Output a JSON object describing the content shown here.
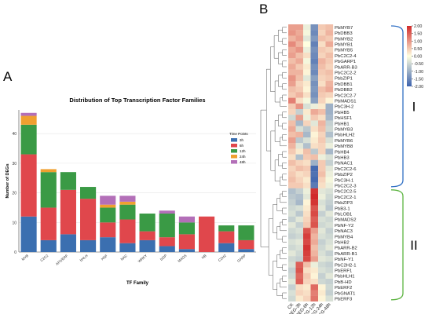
{
  "panels": {
    "a": "A",
    "b": "B"
  },
  "chart_data": [
    {
      "type": "bar",
      "stacked": true,
      "title": "Distribution of Top Transcription Factor Families",
      "xlabel": "TF Family",
      "ylabel": "Number of DEGs",
      "ylim": [
        0,
        48
      ],
      "yticks": [
        0,
        10,
        20,
        30,
        40
      ],
      "grid": true,
      "legend": {
        "title": "Time Points",
        "position": "top-right"
      },
      "categories": [
        "MYB",
        "C2C2",
        "AP2/ERF",
        "bHLH",
        "HSF",
        "NAC",
        "WRKY",
        "bZIP",
        "MADS",
        "HB",
        "C2H2",
        "GARP"
      ],
      "series": [
        {
          "name": "3h",
          "color": "#3b6fb0",
          "values": [
            12,
            4,
            6,
            4,
            5,
            3,
            4,
            2,
            1,
            0,
            3,
            1
          ]
        },
        {
          "name": "6h",
          "color": "#e0474c",
          "values": [
            21,
            11,
            15,
            14,
            5,
            8,
            3,
            3,
            5,
            12,
            4,
            3
          ]
        },
        {
          "name": "12h",
          "color": "#3a9a45",
          "values": [
            10,
            12,
            6,
            4,
            5,
            5,
            6,
            8,
            4,
            0,
            2,
            5
          ]
        },
        {
          "name": "24h",
          "color": "#f0a030",
          "values": [
            3,
            1,
            0,
            0,
            1,
            1,
            0,
            0,
            0,
            0,
            0,
            0
          ]
        },
        {
          "name": "48h",
          "color": "#b36fb8",
          "values": [
            1,
            0,
            0,
            0,
            3,
            2,
            0,
            1,
            2,
            0,
            0,
            0
          ]
        }
      ]
    },
    {
      "type": "heatmap",
      "columns": [
        "CK",
        "PEG-3h",
        "PEG-6h",
        "PEG-12h",
        "PEG-24h",
        "PEG-48h"
      ],
      "rows": [
        "PbMYB7",
        "PbDBB3",
        "PbMYB2",
        "PbMYB1",
        "PbMYB5",
        "PbC2C2-4",
        "PbGARP1",
        "PbARR-B3",
        "PbC2C2-2",
        "PbbZIP1",
        "PbDBB1",
        "PbDBB2",
        "PbC2C2-7",
        "PbMADS1",
        "PbC3H-2",
        "PbHB5",
        "PbHSF1",
        "PbHB1",
        "PbMYB3",
        "PbbHLH2",
        "PbMYB6",
        "PbMYB8",
        "PbHB4",
        "PbHB3",
        "PbNAC1",
        "PbC2C2-6",
        "PbbZIP2",
        "PbC3H-1",
        "PbC2C2-3",
        "PbC2C2-5",
        "PbC2C2-1",
        "PbbZIP3",
        "PbB3-1",
        "PbLOB1",
        "PbMADS2",
        "PbNF-Y2",
        "PbNAC3",
        "PbMYB4",
        "PbHB2",
        "PbARR-B2",
        "PbARR-B1",
        "PbNF-Y1",
        "PbC2H2-1",
        "PbERF1",
        "PbbHLH1",
        "PbB-HD",
        "PbERF2",
        "PbGNAT1",
        "PbERF3"
      ],
      "colorbar": {
        "min": -2,
        "max": 2,
        "ticks": [
          "2.00",
          "1.50",
          "1.00",
          "0.50",
          "0.00",
          "-0.50",
          "-1.00",
          "-1.50",
          "-2.00"
        ],
        "colors": [
          "#3c62ad",
          "#ffffe0",
          "#d12a2a"
        ]
      },
      "groups": [
        {
          "label": "I",
          "from": "PbMYB7",
          "to": "PbC2C2-3",
          "color": "#2f6fc4"
        },
        {
          "label": "II",
          "from": "PbC2C2-5",
          "to": "PbERF3",
          "color": "#5bb33f"
        }
      ],
      "values": [
        [
          0.9,
          0.9,
          -0.2,
          -1.4,
          0.5,
          0.6
        ],
        [
          1.0,
          0.8,
          -0.1,
          -1.5,
          0.4,
          0.7
        ],
        [
          0.7,
          0.9,
          -0.3,
          -1.3,
          0.6,
          0.5
        ],
        [
          1.1,
          0.7,
          0.0,
          -1.6,
          0.3,
          0.8
        ],
        [
          0.8,
          1.0,
          -0.2,
          -1.4,
          0.5,
          0.4
        ],
        [
          0.9,
          0.6,
          0.3,
          -1.5,
          0.4,
          0.6
        ],
        [
          0.6,
          0.8,
          -0.1,
          -1.6,
          0.7,
          0.5
        ],
        [
          0.8,
          0.5,
          0.2,
          -1.4,
          0.6,
          0.4
        ],
        [
          0.7,
          0.7,
          0.1,
          -1.5,
          0.5,
          0.6
        ],
        [
          1.0,
          0.6,
          -0.3,
          -1.2,
          0.4,
          0.5
        ],
        [
          0.9,
          0.4,
          0.2,
          -1.4,
          0.3,
          0.7
        ],
        [
          0.6,
          0.5,
          0.1,
          -1.3,
          0.6,
          0.8
        ],
        [
          0.5,
          0.7,
          0.3,
          -1.4,
          0.5,
          0.4
        ],
        [
          1.2,
          0.3,
          -0.1,
          -1.2,
          0.4,
          0.1
        ],
        [
          0.5,
          1.0,
          -0.4,
          -0.2,
          0.2,
          -1.0
        ],
        [
          0.4,
          -0.6,
          0.2,
          0.8,
          0.6,
          -1.0
        ],
        [
          -0.5,
          0.9,
          -0.2,
          0.5,
          0.3,
          -0.9
        ],
        [
          0.6,
          -0.9,
          0.4,
          -0.3,
          0.7,
          -0.6
        ],
        [
          0.8,
          -0.4,
          -0.7,
          0.3,
          0.6,
          -0.5
        ],
        [
          0.6,
          0.7,
          -0.9,
          0.1,
          0.4,
          -0.8
        ],
        [
          0.9,
          -0.7,
          -0.4,
          0.2,
          0.5,
          -0.4
        ],
        [
          0.7,
          -0.3,
          -0.8,
          0.3,
          0.4,
          -0.2
        ],
        [
          0.5,
          0.2,
          0.6,
          -0.7,
          0.4,
          -0.9
        ],
        [
          0.3,
          -0.8,
          0.5,
          0.6,
          -0.2,
          -0.4
        ],
        [
          0.6,
          0.4,
          0.3,
          -1.0,
          0.5,
          -0.6
        ],
        [
          0.4,
          0.6,
          0.5,
          -1.9,
          0.5,
          -0.3
        ],
        [
          0.5,
          0.3,
          0.4,
          -1.8,
          0.6,
          -0.2
        ],
        [
          0.6,
          0.4,
          0.2,
          -1.9,
          0.4,
          -0.1
        ],
        [
          0.5,
          0.5,
          0.3,
          -1.7,
          0.3,
          -0.2
        ],
        [
          -0.8,
          -0.6,
          -0.2,
          1.9,
          -0.3,
          -0.4
        ],
        [
          -0.7,
          -0.8,
          -0.3,
          2.0,
          -0.2,
          -0.5
        ],
        [
          -0.6,
          -0.9,
          0.1,
          1.9,
          -0.4,
          -0.6
        ],
        [
          -0.5,
          -0.4,
          0.2,
          1.6,
          -0.3,
          -0.7
        ],
        [
          -0.4,
          -0.7,
          0.3,
          1.7,
          -0.6,
          -0.3
        ],
        [
          -0.6,
          -0.3,
          0.4,
          1.5,
          -0.4,
          -0.5
        ],
        [
          -0.3,
          -0.6,
          0.5,
          1.6,
          -0.5,
          -0.4
        ],
        [
          -0.5,
          -0.4,
          1.6,
          0.9,
          -0.3,
          -0.6
        ],
        [
          -0.6,
          -0.5,
          1.8,
          0.7,
          -0.4,
          -0.5
        ],
        [
          -0.4,
          -0.3,
          1.7,
          0.8,
          -0.6,
          -0.4
        ],
        [
          -0.5,
          -0.4,
          1.9,
          0.6,
          -0.5,
          -0.3
        ],
        [
          -0.3,
          -0.5,
          1.8,
          0.7,
          -0.4,
          -0.6
        ],
        [
          -0.5,
          -0.6,
          1.7,
          0.9,
          -0.3,
          -0.4
        ],
        [
          -0.4,
          1.5,
          0.6,
          -0.2,
          -0.5,
          -0.6
        ],
        [
          -0.6,
          1.6,
          0.3,
          0.2,
          -0.4,
          -0.5
        ],
        [
          -0.5,
          1.4,
          0.5,
          0.1,
          -0.6,
          -0.3
        ],
        [
          -0.3,
          1.5,
          0.4,
          0.3,
          -0.5,
          -0.6
        ],
        [
          -0.6,
          0.3,
          0.2,
          1.4,
          0.1,
          -0.5
        ],
        [
          -0.4,
          0.4,
          0.3,
          1.2,
          0.2,
          -0.6
        ],
        [
          -0.5,
          0.2,
          0.4,
          1.3,
          0.1,
          -0.4
        ]
      ]
    }
  ]
}
